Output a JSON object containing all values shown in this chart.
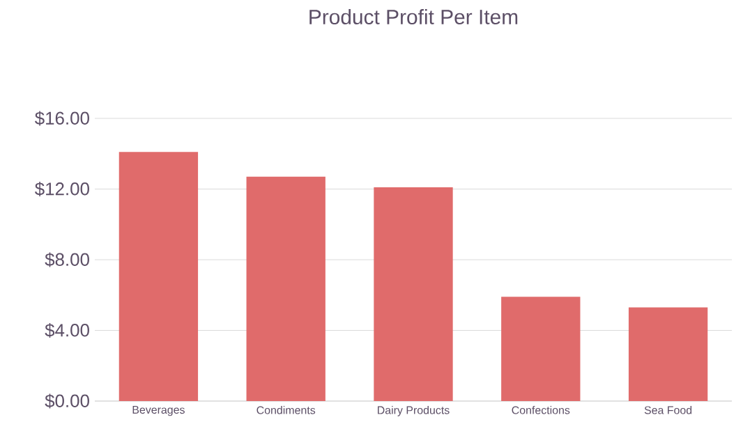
{
  "chart_data": {
    "type": "bar",
    "title": "Product Profit Per Item",
    "categories": [
      "Beverages",
      "Condiments",
      "Dairy Products",
      "Confections",
      "Sea Food"
    ],
    "values": [
      14.1,
      12.7,
      12.1,
      5.9,
      5.3
    ],
    "color": "#e06b6b",
    "ylim": [
      0,
      16
    ],
    "yticks": [
      {
        "value": 0,
        "label": "$0.00"
      },
      {
        "value": 4,
        "label": "$4.00"
      },
      {
        "value": 8,
        "label": "$8.00"
      },
      {
        "value": 12,
        "label": "$12.00"
      },
      {
        "value": 16,
        "label": "$16.00"
      }
    ],
    "grid": "y"
  }
}
